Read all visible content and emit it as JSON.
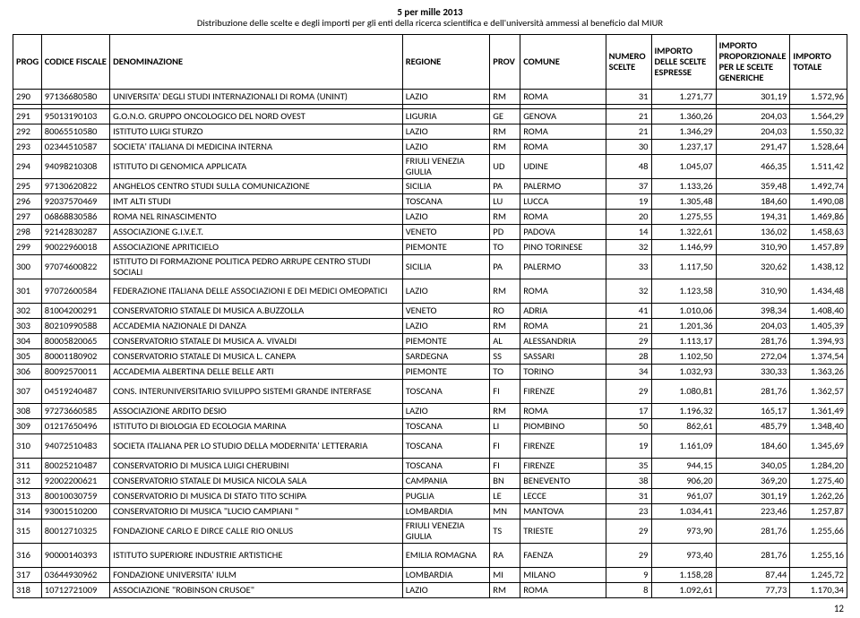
{
  "header": {
    "title": "5 per mille 2013",
    "subtitle": "Distribuzione delle scelte e degli importi per gli enti della ricerca scientifica e dell'università ammessi al beneficio dal MIUR"
  },
  "columns": [
    "PROG",
    "CODICE FISCALE",
    "DENOMINAZIONE",
    "REGIONE",
    "PROV",
    "COMUNE",
    "NUMERO SCELTE",
    "IMPORTO DELLE SCELTE ESPRESSE",
    "IMPORTO PROPORZIONALE PER LE SCELTE GENERICHE",
    "IMPORTO TOTALE"
  ],
  "top_row": {
    "prog": "290",
    "cf": "97136680580",
    "denom": "UNIVERSITA' DEGLI STUDI INTERNAZIONALI DI ROMA (UNINT)",
    "regione": "LAZIO",
    "prov": "RM",
    "comune": "ROMA",
    "nsc": "31",
    "imp1": "1.271,77",
    "imp2": "301,19",
    "imp3": "1.572,96"
  },
  "rows": [
    {
      "prog": "291",
      "cf": "95013190103",
      "denom": "G.O.N.O. GRUPPO ONCOLOGICO DEL NORD OVEST",
      "regione": "LIGURIA",
      "prov": "GE",
      "comune": "GENOVA",
      "nsc": "21",
      "imp1": "1.360,26",
      "imp2": "204,03",
      "imp3": "1.564,29"
    },
    {
      "prog": "292",
      "cf": "80065510580",
      "denom": "ISTITUTO LUIGI STURZO",
      "regione": "LAZIO",
      "prov": "RM",
      "comune": "ROMA",
      "nsc": "21",
      "imp1": "1.346,29",
      "imp2": "204,03",
      "imp3": "1.550,32"
    },
    {
      "prog": "293",
      "cf": "02344510587",
      "denom": "SOCIETA' ITALIANA DI MEDICINA INTERNA",
      "regione": "LAZIO",
      "prov": "RM",
      "comune": "ROMA",
      "nsc": "30",
      "imp1": "1.237,17",
      "imp2": "291,47",
      "imp3": "1.528,64"
    },
    {
      "prog": "294",
      "cf": "94098210308",
      "denom": "ISTITUTO DI GENOMICA APPLICATA",
      "regione": "FRIULI VENEZIA GIULIA",
      "prov": "UD",
      "comune": "UDINE",
      "nsc": "48",
      "imp1": "1.045,07",
      "imp2": "466,35",
      "imp3": "1.511,42",
      "tall": true
    },
    {
      "prog": "295",
      "cf": "97130620822",
      "denom": "ANGHELOS CENTRO STUDI SULLA COMUNICAZIONE",
      "regione": "SICILIA",
      "prov": "PA",
      "comune": "PALERMO",
      "nsc": "37",
      "imp1": "1.133,26",
      "imp2": "359,48",
      "imp3": "1.492,74"
    },
    {
      "prog": "296",
      "cf": "92037570469",
      "denom": "IMT ALTI STUDI",
      "regione": "TOSCANA",
      "prov": "LU",
      "comune": "LUCCA",
      "nsc": "19",
      "imp1": "1.305,48",
      "imp2": "184,60",
      "imp3": "1.490,08"
    },
    {
      "prog": "297",
      "cf": "06868830586",
      "denom": "ROMA NEL RINASCIMENTO",
      "regione": "LAZIO",
      "prov": "RM",
      "comune": "ROMA",
      "nsc": "20",
      "imp1": "1.275,55",
      "imp2": "194,31",
      "imp3": "1.469,86"
    },
    {
      "prog": "298",
      "cf": "92142830287",
      "denom": "ASSOCIAZIONE G.I.V.E.T.",
      "regione": "VENETO",
      "prov": "PD",
      "comune": "PADOVA",
      "nsc": "14",
      "imp1": "1.322,61",
      "imp2": "136,02",
      "imp3": "1.458,63"
    },
    {
      "prog": "299",
      "cf": "90022960018",
      "denom": "ASSOCIAZIONE APRITICIELO",
      "regione": "PIEMONTE",
      "prov": "TO",
      "comune": "PINO TORINESE",
      "nsc": "32",
      "imp1": "1.146,99",
      "imp2": "310,90",
      "imp3": "1.457,89"
    },
    {
      "prog": "300",
      "cf": "97074600822",
      "denom": "ISTITUTO DI FORMAZIONE POLITICA PEDRO ARRUPE CENTRO STUDI SOCIALI",
      "regione": "SICILIA",
      "prov": "PA",
      "comune": "PALERMO",
      "nsc": "33",
      "imp1": "1.117,50",
      "imp2": "320,62",
      "imp3": "1.438,12",
      "tall": true
    },
    {
      "prog": "301",
      "cf": "97072600584",
      "denom": "FEDERAZIONE ITALIANA DELLE ASSOCIAZIONI E DEI MEDICI OMEOPATICI",
      "regione": "LAZIO",
      "prov": "RM",
      "comune": "ROMA",
      "nsc": "32",
      "imp1": "1.123,58",
      "imp2": "310,90",
      "imp3": "1.434,48",
      "tall": true
    },
    {
      "prog": "302",
      "cf": "81004200291",
      "denom": "CONSERVATORIO STATALE DI MUSICA A.BUZZOLLA",
      "regione": "VENETO",
      "prov": "RO",
      "comune": "ADRIA",
      "nsc": "41",
      "imp1": "1.010,06",
      "imp2": "398,34",
      "imp3": "1.408,40"
    },
    {
      "prog": "303",
      "cf": "80210990588",
      "denom": "ACCADEMIA NAZIONALE DI DANZA",
      "regione": "LAZIO",
      "prov": "RM",
      "comune": "ROMA",
      "nsc": "21",
      "imp1": "1.201,36",
      "imp2": "204,03",
      "imp3": "1.405,39"
    },
    {
      "prog": "304",
      "cf": "80005820065",
      "denom": "CONSERVATORIO STATALE DI MUSICA A. VIVALDI",
      "regione": "PIEMONTE",
      "prov": "AL",
      "comune": "ALESSANDRIA",
      "nsc": "29",
      "imp1": "1.113,17",
      "imp2": "281,76",
      "imp3": "1.394,93"
    },
    {
      "prog": "305",
      "cf": "80001180902",
      "denom": "CONSERVATORIO STATALE DI MUSICA L. CANEPA",
      "regione": "SARDEGNA",
      "prov": "SS",
      "comune": "SASSARI",
      "nsc": "28",
      "imp1": "1.102,50",
      "imp2": "272,04",
      "imp3": "1.374,54"
    },
    {
      "prog": "306",
      "cf": "80092570011",
      "denom": "ACCADEMIA ALBERTINA DELLE BELLE ARTI",
      "regione": "PIEMONTE",
      "prov": "TO",
      "comune": "TORINO",
      "nsc": "34",
      "imp1": "1.032,93",
      "imp2": "330,33",
      "imp3": "1.363,26"
    },
    {
      "prog": "307",
      "cf": "04519240487",
      "denom": "CONS. INTERUNIVERSITARIO SVILUPPO SISTEMI GRANDE INTERFASE",
      "regione": "TOSCANA",
      "prov": "FI",
      "comune": "FIRENZE",
      "nsc": "29",
      "imp1": "1.080,81",
      "imp2": "281,76",
      "imp3": "1.362,57",
      "tall": true
    },
    {
      "prog": "308",
      "cf": "97273660585",
      "denom": "ASSOCIAZIONE ARDITO DESIO",
      "regione": "LAZIO",
      "prov": "RM",
      "comune": "ROMA",
      "nsc": "17",
      "imp1": "1.196,32",
      "imp2": "165,17",
      "imp3": "1.361,49"
    },
    {
      "prog": "309",
      "cf": "01217650496",
      "denom": "ISTITUTO DI BIOLOGIA ED ECOLOGIA MARINA",
      "regione": "TOSCANA",
      "prov": "LI",
      "comune": "PIOMBINO",
      "nsc": "50",
      "imp1": "862,61",
      "imp2": "485,79",
      "imp3": "1.348,40"
    },
    {
      "prog": "310",
      "cf": "94072510483",
      "denom": "SOCIETA ITALIANA PER LO STUDIO DELLA MODERNITA' LETTERARIA",
      "regione": "TOSCANA",
      "prov": "FI",
      "comune": "FIRENZE",
      "nsc": "19",
      "imp1": "1.161,09",
      "imp2": "184,60",
      "imp3": "1.345,69",
      "tall": true
    },
    {
      "prog": "311",
      "cf": "80025210487",
      "denom": "CONSERVATORIO DI MUSICA LUIGI CHERUBINI",
      "regione": "TOSCANA",
      "prov": "FI",
      "comune": "FIRENZE",
      "nsc": "35",
      "imp1": "944,15",
      "imp2": "340,05",
      "imp3": "1.284,20"
    },
    {
      "prog": "312",
      "cf": "92002200621",
      "denom": "CONSERVATORIO STATALE DI MUSICA NICOLA SALA",
      "regione": "CAMPANIA",
      "prov": "BN",
      "comune": "BENEVENTO",
      "nsc": "38",
      "imp1": "906,20",
      "imp2": "369,20",
      "imp3": "1.275,40"
    },
    {
      "prog": "313",
      "cf": "80010030759",
      "denom": "CONSERVATORIO DI MUSICA DI STATO TITO SCHIPA",
      "regione": "PUGLIA",
      "prov": "LE",
      "comune": "LECCE",
      "nsc": "31",
      "imp1": "961,07",
      "imp2": "301,19",
      "imp3": "1.262,26"
    },
    {
      "prog": "314",
      "cf": "93001510200",
      "denom": "CONSERVATORIO DI MUSICA \"LUCIO CAMPIANI \"",
      "regione": "LOMBARDIA",
      "prov": "MN",
      "comune": "MANTOVA",
      "nsc": "23",
      "imp1": "1.034,41",
      "imp2": "223,46",
      "imp3": "1.257,87"
    },
    {
      "prog": "315",
      "cf": "80012710325",
      "denom": "FONDAZIONE CARLO E DIRCE CALLE RIO ONLUS",
      "regione": "FRIULI VENEZIA GIULIA",
      "prov": "TS",
      "comune": "TRIESTE",
      "nsc": "29",
      "imp1": "973,90",
      "imp2": "281,76",
      "imp3": "1.255,66",
      "tall": true
    },
    {
      "prog": "316",
      "cf": "90000140393",
      "denom": "ISTITUTO SUPERIORE INDUSTRIE ARTISTICHE",
      "regione": "EMILIA ROMAGNA",
      "prov": "RA",
      "comune": "FAENZA",
      "nsc": "29",
      "imp1": "973,40",
      "imp2": "281,76",
      "imp3": "1.255,16",
      "tall": true
    },
    {
      "prog": "317",
      "cf": "03644930962",
      "denom": "FONDAZIONE UNIVERSITA' IULM",
      "regione": "LOMBARDIA",
      "prov": "MI",
      "comune": "MILANO",
      "nsc": "9",
      "imp1": "1.158,28",
      "imp2": "87,44",
      "imp3": "1.245,72"
    },
    {
      "prog": "318",
      "cf": "10712721009",
      "denom": "ASSOCIAZIONE \"ROBINSON CRUSOE\"",
      "regione": "LAZIO",
      "prov": "RM",
      "comune": "ROMA",
      "nsc": "8",
      "imp1": "1.092,61",
      "imp2": "77,73",
      "imp3": "1.170,34"
    }
  ],
  "page_number": "12"
}
